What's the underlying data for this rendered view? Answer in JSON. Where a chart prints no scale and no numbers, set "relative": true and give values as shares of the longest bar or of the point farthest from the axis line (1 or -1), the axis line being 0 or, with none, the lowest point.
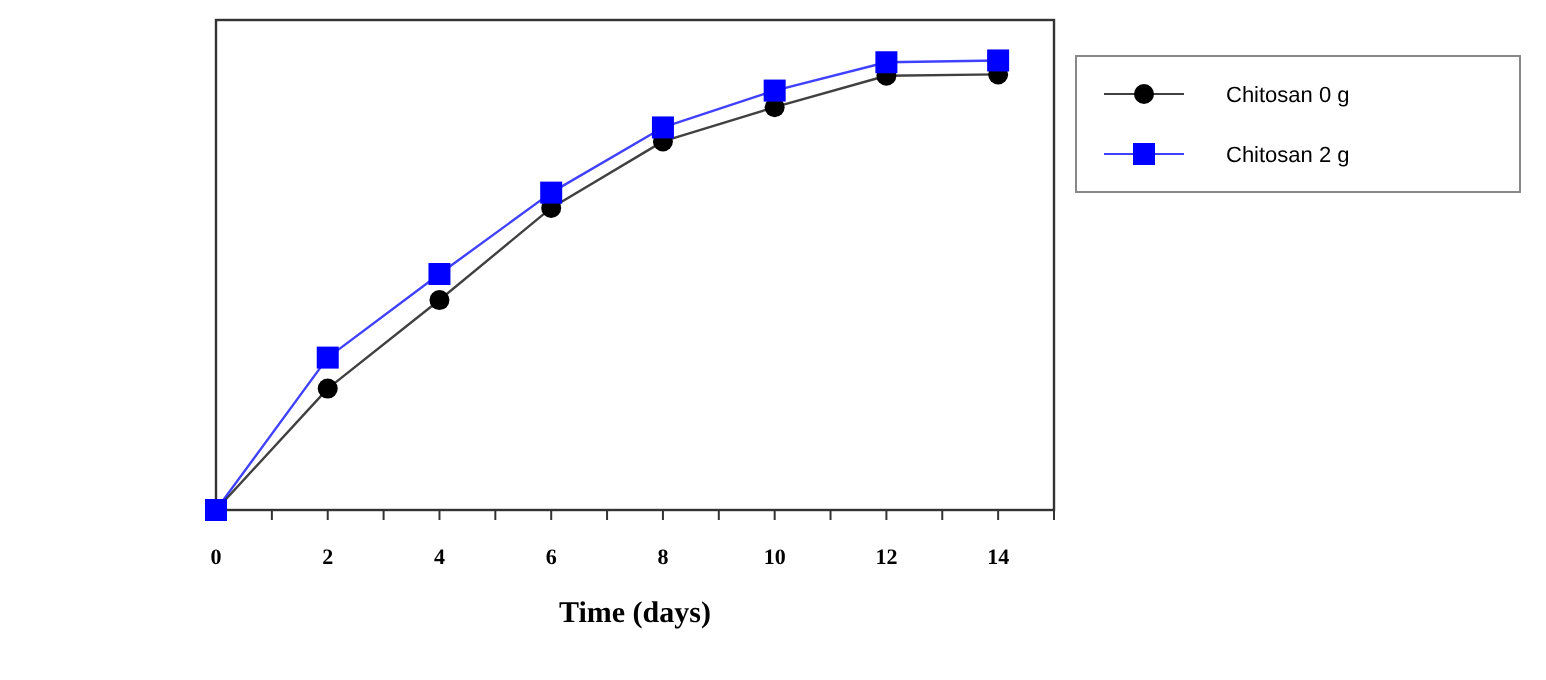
{
  "chart_data": {
    "type": "line",
    "xlabel": "Time (days)",
    "relative": true,
    "x": [
      0,
      2,
      4,
      6,
      8,
      10,
      12,
      14
    ],
    "xlim": [
      0,
      15
    ],
    "xticks": [
      0,
      {
        "value": 1,
        "label": null
      },
      2,
      {
        "value": 3,
        "label": null
      },
      4,
      {
        "value": 5,
        "label": null
      },
      6,
      {
        "value": 7,
        "label": null
      },
      8,
      {
        "value": 9,
        "label": null
      },
      10,
      {
        "value": 11,
        "label": null
      },
      12,
      {
        "value": 13,
        "label": null
      },
      14,
      {
        "value": 15,
        "label": null
      }
    ],
    "series": [
      {
        "name": "Chitosan 0 g",
        "color": "#000000",
        "marker": "circle",
        "values": [
          0,
          0.27,
          0.467,
          0.672,
          0.82,
          0.896,
          0.966,
          0.969
        ]
      },
      {
        "name": "Chitosan 2 g",
        "color": "#0000ff",
        "marker": "square",
        "values": [
          0,
          0.339,
          0.525,
          0.706,
          0.851,
          0.933,
          0.996,
          1
        ]
      }
    ],
    "legend": "right",
    "grid": false,
    "line_style": "solid"
  }
}
